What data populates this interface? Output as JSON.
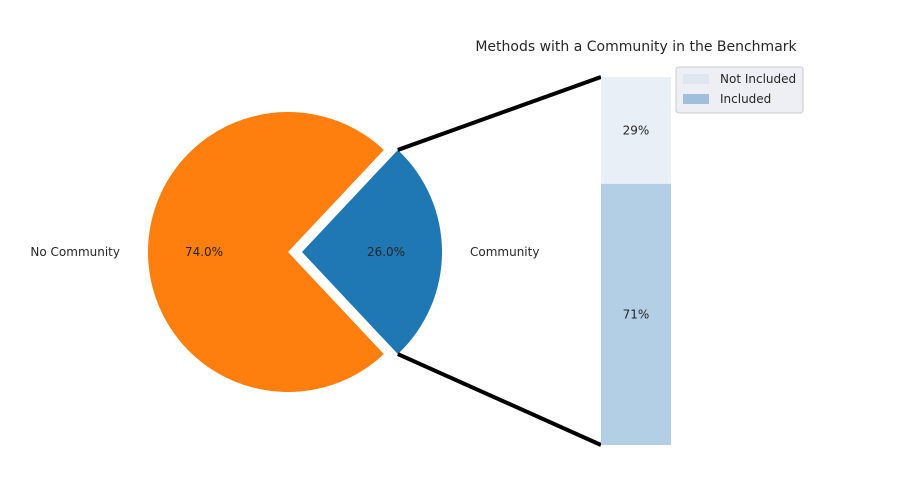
{
  "chart_data": [
    {
      "type": "pie",
      "labels": [
        "No Community",
        "Community"
      ],
      "values": [
        74.0,
        26.0
      ],
      "value_labels": [
        "74.0%",
        "26.0%"
      ],
      "colors": [
        "#ff7f0e",
        "#1f77b4"
      ],
      "exploded": "Community"
    },
    {
      "type": "bar",
      "stacked": true,
      "title": "Methods with a Community in the Benchmark",
      "categories": [
        "Community"
      ],
      "series": [
        {
          "name": "Included",
          "values": [
            71
          ],
          "label": "71%",
          "color": "#b3cfe5"
        },
        {
          "name": "Not Included",
          "values": [
            29
          ],
          "label": "29%",
          "color": "#e8eff7"
        }
      ],
      "ylim": [
        0,
        100
      ],
      "legend_position": "top-right",
      "legend_order": [
        "Not Included",
        "Included"
      ],
      "legend_colors": [
        "#dfe6f0",
        "#9fbfdc"
      ]
    }
  ]
}
